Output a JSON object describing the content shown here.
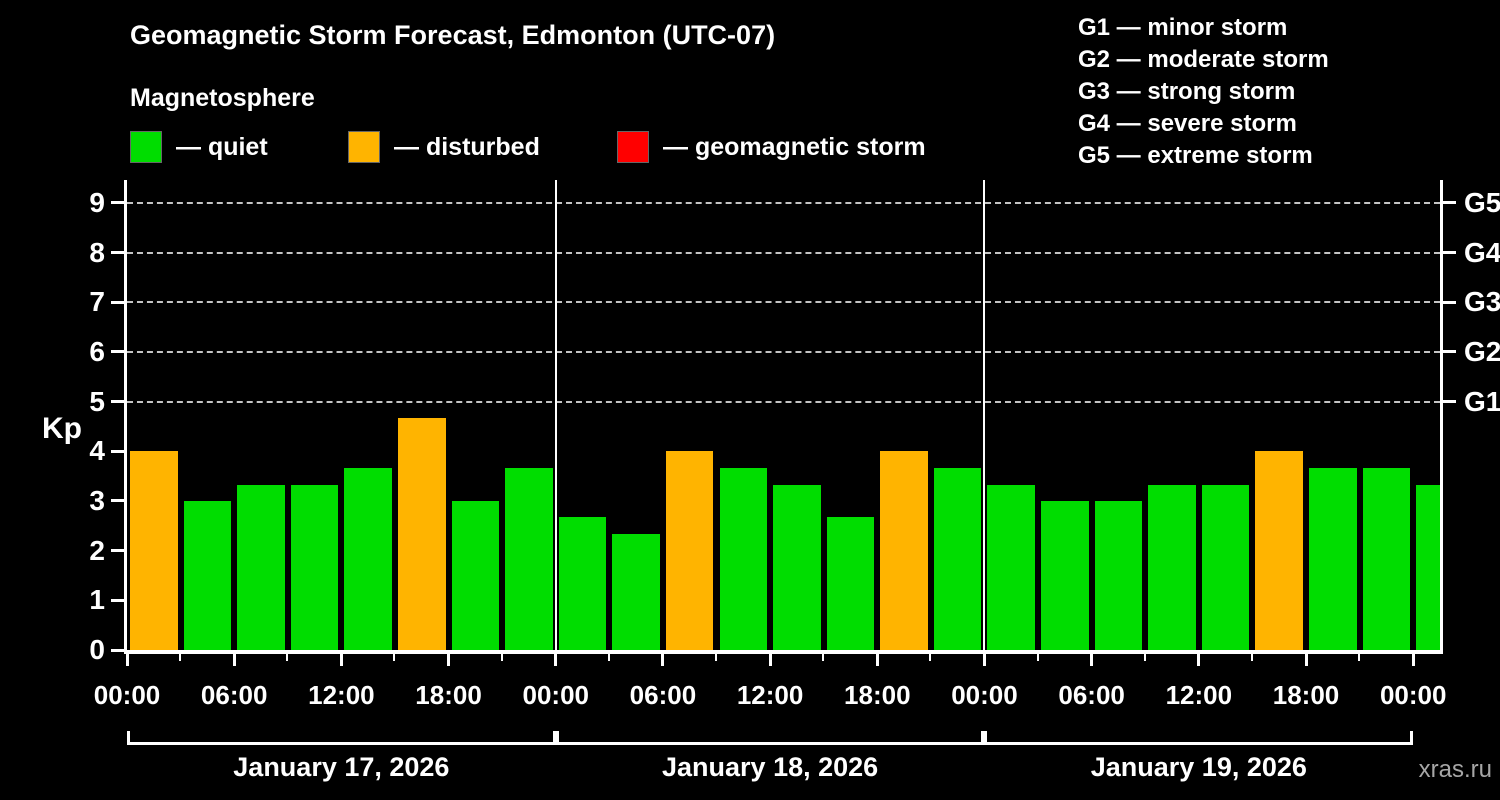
{
  "title": "Geomagnetic Storm Forecast, Edmonton (UTC-07)",
  "subtitle": "Magnetosphere",
  "status_legend": [
    {
      "name": "quiet",
      "label": "— quiet",
      "color": "#00dd00"
    },
    {
      "name": "disturbed",
      "label": "— disturbed",
      "color": "#ffb400"
    },
    {
      "name": "storm",
      "label": "— geomagnetic storm",
      "color": "#ff0000"
    }
  ],
  "g_scale_legend": [
    "G1 — minor storm",
    "G2 — moderate storm",
    "G3 — strong storm",
    "G4 — severe storm",
    "G5 — extreme storm"
  ],
  "watermark": "xras.ru",
  "chart_data": {
    "type": "bar",
    "ylabel": "Kp",
    "y_ticks": [
      0,
      1,
      2,
      3,
      4,
      5,
      6,
      7,
      8,
      9
    ],
    "y_axis_max": 9.46,
    "ylim": [
      0,
      9
    ],
    "gridlines_kp": [
      5,
      6,
      7,
      8,
      9
    ],
    "grid_style": "dashed",
    "right_axis_labels": [
      {
        "kp": 5,
        "label": "G1"
      },
      {
        "kp": 6,
        "label": "G2"
      },
      {
        "kp": 7,
        "label": "G3"
      },
      {
        "kp": 8,
        "label": "G4"
      },
      {
        "kp": 9,
        "label": "G5"
      }
    ],
    "hours_total": 73.5,
    "bar_interval_hours": 3,
    "x_ticks": [
      {
        "hour": 0,
        "label": "00:00"
      },
      {
        "hour": 6,
        "label": "06:00"
      },
      {
        "hour": 12,
        "label": "12:00"
      },
      {
        "hour": 18,
        "label": "18:00"
      },
      {
        "hour": 24,
        "label": "00:00"
      },
      {
        "hour": 30,
        "label": "06:00"
      },
      {
        "hour": 36,
        "label": "12:00"
      },
      {
        "hour": 42,
        "label": "18:00"
      },
      {
        "hour": 48,
        "label": "00:00"
      },
      {
        "hour": 54,
        "label": "06:00"
      },
      {
        "hour": 60,
        "label": "12:00"
      },
      {
        "hour": 66,
        "label": "18:00"
      },
      {
        "hour": 72,
        "label": "00:00"
      }
    ],
    "day_separators_hours": [
      24,
      48
    ],
    "days": [
      {
        "label": "January 17, 2026",
        "start_hour": 0,
        "end_hour": 24
      },
      {
        "label": "January 18, 2026",
        "start_hour": 24,
        "end_hour": 48
      },
      {
        "label": "January 19, 2026",
        "start_hour": 48,
        "end_hour": 72
      }
    ],
    "colors": {
      "quiet": "#00dd00",
      "disturbed": "#ffb400",
      "storm": "#ff0000"
    },
    "bars": [
      {
        "start_hour": 0,
        "kp": 4.0,
        "level": "disturbed"
      },
      {
        "start_hour": 3,
        "kp": 3.0,
        "level": "quiet"
      },
      {
        "start_hour": 6,
        "kp": 3.33,
        "level": "quiet"
      },
      {
        "start_hour": 9,
        "kp": 3.33,
        "level": "quiet"
      },
      {
        "start_hour": 12,
        "kp": 3.67,
        "level": "quiet"
      },
      {
        "start_hour": 15,
        "kp": 4.67,
        "level": "disturbed"
      },
      {
        "start_hour": 18,
        "kp": 3.0,
        "level": "quiet"
      },
      {
        "start_hour": 21,
        "kp": 3.67,
        "level": "quiet"
      },
      {
        "start_hour": 24,
        "kp": 2.67,
        "level": "quiet"
      },
      {
        "start_hour": 27,
        "kp": 2.33,
        "level": "quiet"
      },
      {
        "start_hour": 30,
        "kp": 4.0,
        "level": "disturbed"
      },
      {
        "start_hour": 33,
        "kp": 3.67,
        "level": "quiet"
      },
      {
        "start_hour": 36,
        "kp": 3.33,
        "level": "quiet"
      },
      {
        "start_hour": 39,
        "kp": 2.67,
        "level": "quiet"
      },
      {
        "start_hour": 42,
        "kp": 4.0,
        "level": "disturbed"
      },
      {
        "start_hour": 45,
        "kp": 3.67,
        "level": "quiet"
      },
      {
        "start_hour": 48,
        "kp": 3.33,
        "level": "quiet"
      },
      {
        "start_hour": 51,
        "kp": 3.0,
        "level": "quiet"
      },
      {
        "start_hour": 54,
        "kp": 3.0,
        "level": "quiet"
      },
      {
        "start_hour": 57,
        "kp": 3.33,
        "level": "quiet"
      },
      {
        "start_hour": 60,
        "kp": 3.33,
        "level": "quiet"
      },
      {
        "start_hour": 63,
        "kp": 4.0,
        "level": "disturbed"
      },
      {
        "start_hour": 66,
        "kp": 3.67,
        "level": "quiet"
      },
      {
        "start_hour": 69,
        "kp": 3.67,
        "level": "quiet"
      },
      {
        "start_hour": 72,
        "kp": 3.33,
        "level": "quiet"
      }
    ]
  }
}
